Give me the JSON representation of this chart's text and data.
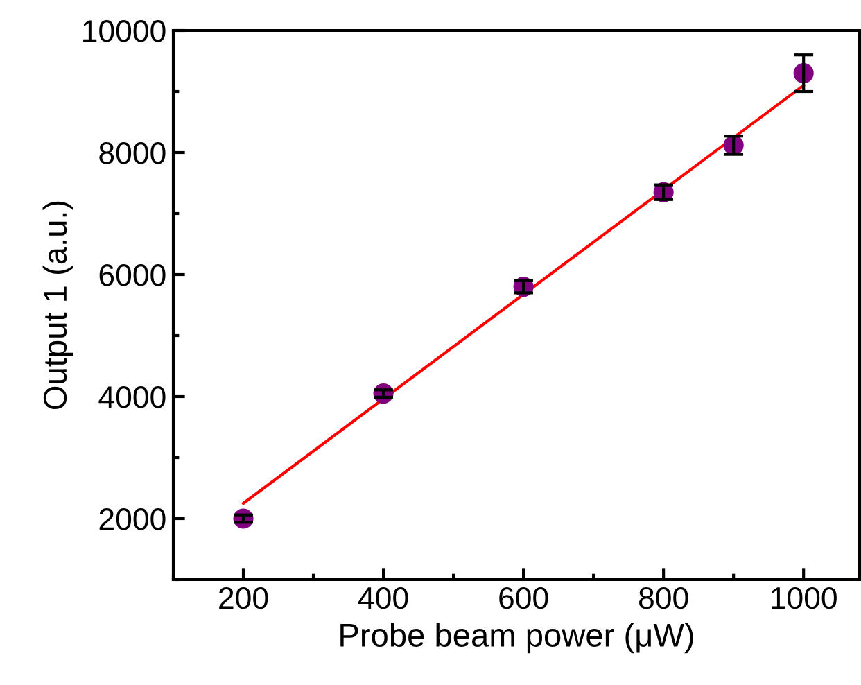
{
  "chart_data": {
    "type": "scatter",
    "xlabel": "Probe beam power (μW)",
    "ylabel": "Output 1 (a.u.)",
    "xlim": [
      100,
      1080
    ],
    "xticks": [
      200,
      400,
      600,
      800,
      1000
    ],
    "ylim": [
      1000,
      10000
    ],
    "yticks": [
      2000,
      4000,
      6000,
      8000,
      10000
    ],
    "grid": false,
    "legend": false,
    "series": [
      {
        "color": "#800080",
        "marker": "circle",
        "x": [
          200,
          400,
          600,
          800,
          900,
          1000
        ],
        "values": [
          2000,
          4050,
          5800,
          7350,
          8120,
          9300
        ],
        "errors": [
          60,
          60,
          100,
          120,
          150,
          300
        ]
      },
      {
        "type": "line",
        "color": "#ff0000",
        "marker": "none",
        "line_style": "solid",
        "x": [
          200,
          1000
        ],
        "values": [
          2250,
          9100
        ]
      }
    ]
  }
}
